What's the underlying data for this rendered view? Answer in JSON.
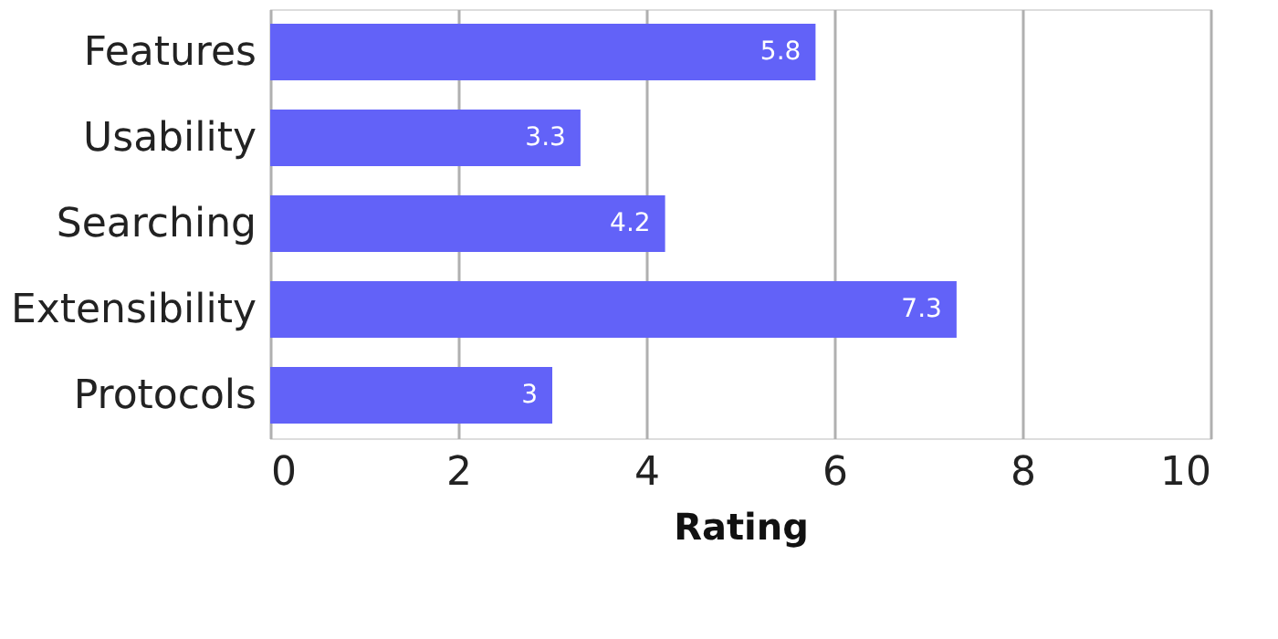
{
  "chart_data": {
    "type": "bar",
    "orientation": "horizontal",
    "xlabel": "Rating",
    "categories": [
      "Features",
      "Usability",
      "Searching",
      "Extensibility",
      "Protocols"
    ],
    "values": [
      5.8,
      3.3,
      4.2,
      7.3,
      3
    ],
    "color": "#6262f8",
    "xlim": [
      0,
      10
    ],
    "xticks": [
      0,
      2,
      4,
      6,
      8,
      10
    ],
    "grid": "x",
    "data_labels": true
  }
}
